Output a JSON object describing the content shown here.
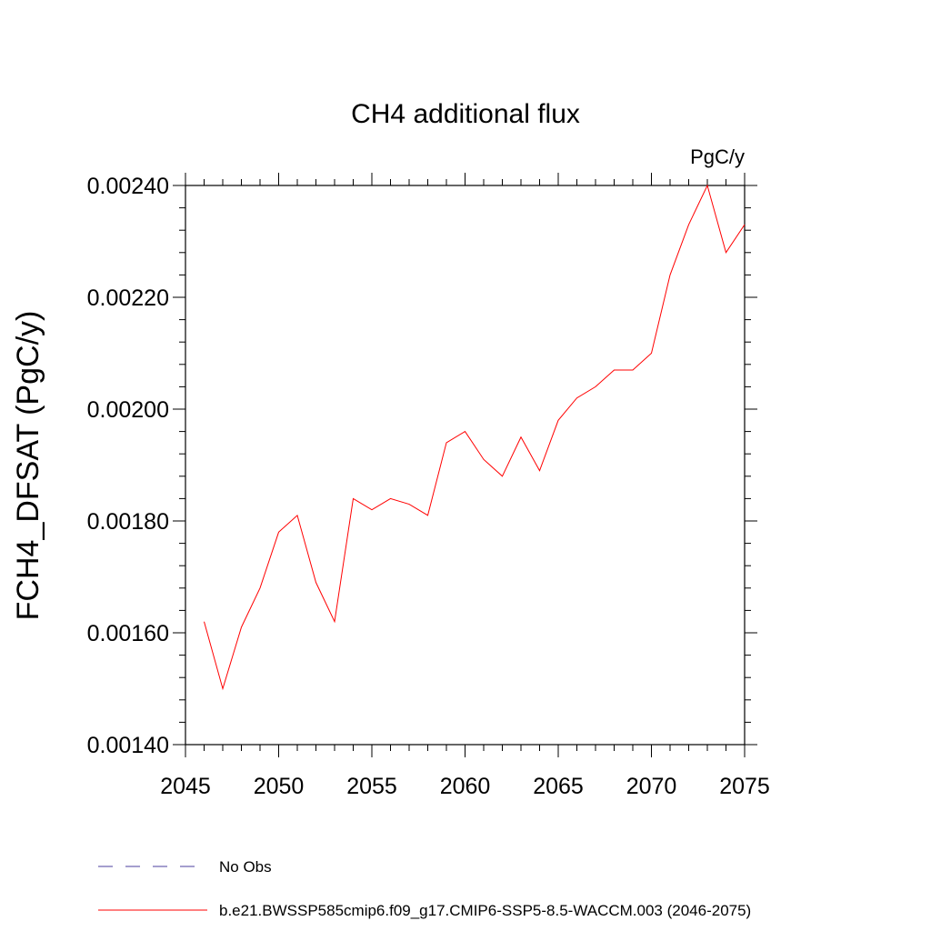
{
  "chart_data": {
    "type": "line",
    "title": "CH4 additional flux",
    "units": "PgC/y",
    "xlabel": "",
    "ylabel": "FCH4_DFSAT  (PgC/y)",
    "xlim": [
      2045,
      2075
    ],
    "ylim": [
      0.0014,
      0.0024
    ],
    "x_ticks": [
      2045,
      2050,
      2055,
      2060,
      2065,
      2070,
      2075
    ],
    "x_tick_labels": [
      "2045",
      "2050",
      "2055",
      "2060",
      "2065",
      "2070",
      "2075"
    ],
    "y_ticks": [
      0.0014,
      0.0016,
      0.0018,
      0.002,
      0.0022,
      0.0024
    ],
    "y_tick_labels": [
      "0.00140",
      "0.00160",
      "0.00180",
      "0.00200",
      "0.00220",
      "0.00240"
    ],
    "grid": false,
    "legend_position": "bottom",
    "series": [
      {
        "name": "b.e21.BWSSP585cmip6.f09_g17.CMIP6-SSP5-8.5-WACCM.003 (2046-2075)",
        "color": "#ff0000",
        "style": "solid",
        "x": [
          2046,
          2047,
          2048,
          2049,
          2050,
          2051,
          2052,
          2053,
          2054,
          2055,
          2056,
          2057,
          2058,
          2059,
          2060,
          2061,
          2062,
          2063,
          2064,
          2065,
          2066,
          2067,
          2068,
          2069,
          2070,
          2071,
          2072,
          2073,
          2074,
          2075
        ],
        "values": [
          0.00162,
          0.0015,
          0.00161,
          0.00168,
          0.00178,
          0.00181,
          0.00169,
          0.00162,
          0.00184,
          0.00182,
          0.00184,
          0.00183,
          0.00181,
          0.00194,
          0.00196,
          0.00191,
          0.00188,
          0.00195,
          0.00189,
          0.00198,
          0.00202,
          0.00204,
          0.00207,
          0.00207,
          0.0021,
          0.00224,
          0.00233,
          0.0024,
          0.00228,
          0.00233
        ]
      }
    ],
    "reference": {
      "name": "No Obs",
      "color": "#4b3f9e",
      "style": "dashed"
    }
  }
}
